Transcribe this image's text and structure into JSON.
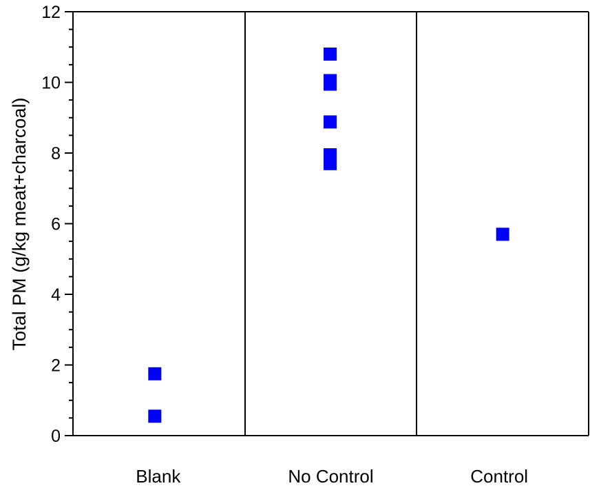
{
  "chart_data": {
    "type": "scatter",
    "title": "",
    "xlabel": "",
    "ylabel": "Total PM (g/kg meat+charcoal)",
    "ylim": [
      0,
      12
    ],
    "yticks": [
      {
        "value": 0,
        "label": "0"
      },
      {
        "value": 2,
        "label": "2"
      },
      {
        "value": 4,
        "label": "4"
      },
      {
        "value": 6,
        "label": "6"
      },
      {
        "value": 8,
        "label": "8"
      },
      {
        "value": 10,
        "label": "10"
      },
      {
        "value": 12,
        "label": "12"
      }
    ],
    "y_minor_step": 0.5,
    "grid": false,
    "legend": "none",
    "categories": [
      "Blank",
      "No Control",
      "Control"
    ],
    "series": [
      {
        "color": "#0000ff",
        "marker": "square",
        "points": [
          {
            "category": "Blank",
            "y": 1.75
          },
          {
            "category": "Blank",
            "y": 0.55
          },
          {
            "category": "No Control",
            "y": 10.8
          },
          {
            "category": "No Control",
            "y": 10.05
          },
          {
            "category": "No Control",
            "y": 9.95
          },
          {
            "category": "No Control",
            "y": 8.88
          },
          {
            "category": "No Control",
            "y": 7.95
          },
          {
            "category": "No Control",
            "y": 7.7
          },
          {
            "category": "Control",
            "y": 5.7
          }
        ]
      }
    ]
  }
}
